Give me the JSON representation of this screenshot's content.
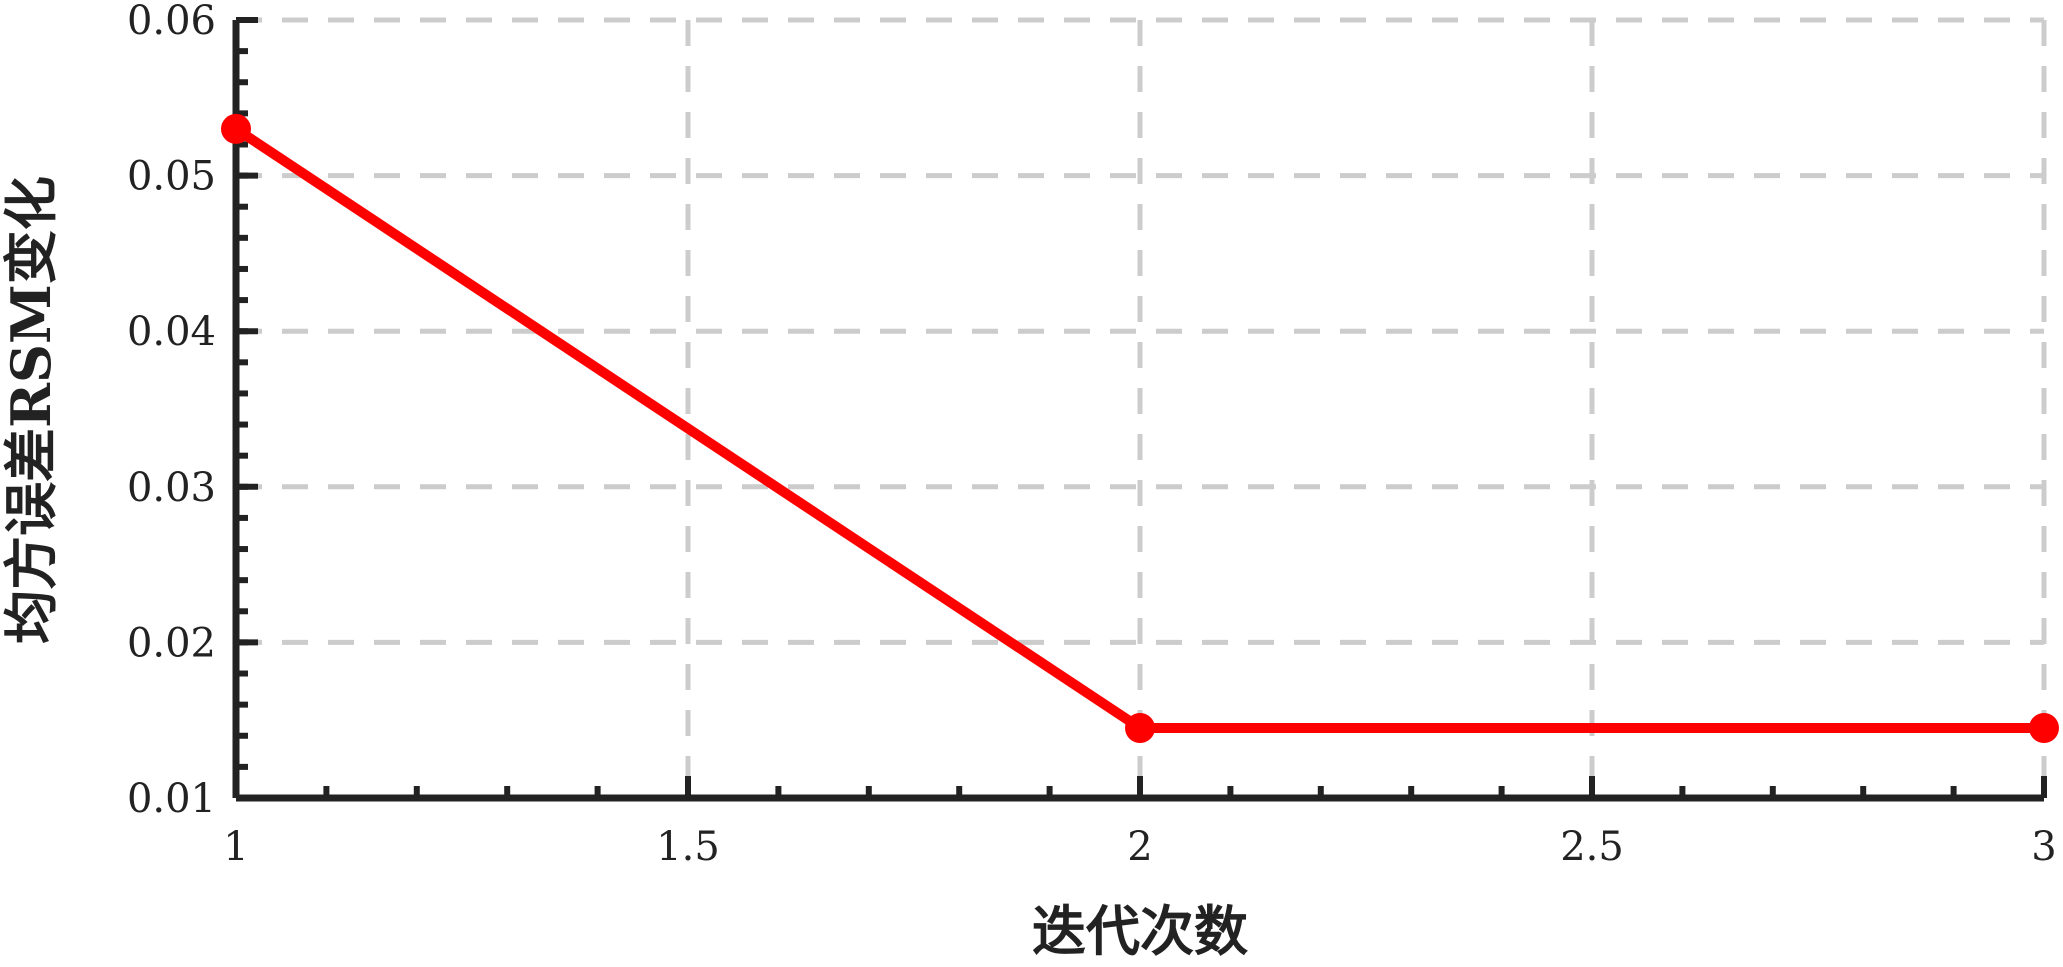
{
  "chart_data": {
    "type": "line",
    "title": "",
    "xlabel": "迭代次数",
    "ylabel": "均方误差RSM变化",
    "x": [
      1,
      2,
      3
    ],
    "series": [
      {
        "values": [
          0.053,
          0.0145,
          0.0145
        ],
        "color": "#ff0000",
        "marker": "circle"
      }
    ],
    "xlim": [
      1,
      3
    ],
    "ylim": [
      0.01,
      0.06
    ],
    "xticks": [
      1,
      1.5,
      2,
      2.5,
      3
    ],
    "xtick_labels": [
      "1",
      "1.5",
      "2",
      "2.5",
      "3"
    ],
    "yticks": [
      0.01,
      0.02,
      0.03,
      0.04,
      0.05,
      0.06
    ],
    "ytick_labels": [
      "0.01",
      "0.02",
      "0.03",
      "0.04",
      "0.05",
      "0.06"
    ],
    "grid": true,
    "grid_style": "dashed",
    "axis_color": "#222222",
    "grid_color": "#cccccc"
  }
}
